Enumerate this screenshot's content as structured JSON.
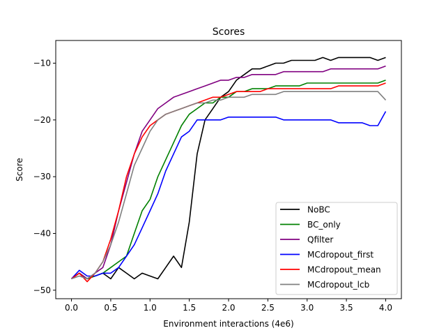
{
  "chart_data": {
    "type": "line",
    "title": "Scores",
    "xlabel": "Environment interactions (4e6)",
    "ylabel": "Score",
    "xlim": [
      -0.2,
      4.2
    ],
    "ylim": [
      -51.5,
      -6.0
    ],
    "x_ticks": [
      0.0,
      0.5,
      1.0,
      1.5,
      2.0,
      2.5,
      3.0,
      3.5,
      4.0
    ],
    "x_tick_labels": [
      "0.0",
      "0.5",
      "1.0",
      "1.5",
      "2.0",
      "2.5",
      "3.0",
      "3.5",
      "4.0"
    ],
    "y_ticks": [
      -50,
      -40,
      -30,
      -20,
      -10
    ],
    "y_tick_labels": [
      "−50",
      "−40",
      "−30",
      "−20",
      "−10"
    ],
    "grid": false,
    "legend_position": "lower right",
    "x": [
      0.0,
      0.1,
      0.2,
      0.3,
      0.4,
      0.5,
      0.6,
      0.7,
      0.8,
      0.9,
      1.0,
      1.1,
      1.2,
      1.3,
      1.4,
      1.5,
      1.6,
      1.7,
      1.8,
      1.9,
      2.0,
      2.1,
      2.2,
      2.3,
      2.4,
      2.5,
      2.6,
      2.7,
      2.8,
      2.9,
      3.0,
      3.1,
      3.2,
      3.3,
      3.4,
      3.5,
      3.6,
      3.7,
      3.8,
      3.9,
      4.0
    ],
    "series": [
      {
        "name": "NoBC",
        "color": "#000000",
        "values": [
          -48,
          -47,
          -48,
          -47.5,
          -47,
          -48,
          -46,
          -47,
          -48,
          -47,
          -47.5,
          -48,
          -46,
          -44,
          -46,
          -38,
          -26,
          -20,
          -18,
          -16,
          -15,
          -13,
          -12,
          -11,
          -11,
          -10.5,
          -10,
          -10,
          -9.5,
          -9.5,
          -9.5,
          -9.5,
          -9,
          -9.5,
          -9,
          -9,
          -9,
          -9,
          -9,
          -9.5,
          -9
        ]
      },
      {
        "name": "BC_only",
        "color": "#008000",
        "values": [
          -48,
          -47,
          -48,
          -47.5,
          -47,
          -46,
          -45,
          -44,
          -40,
          -36,
          -34,
          -30,
          -27,
          -24,
          -21,
          -19,
          -18,
          -17,
          -17,
          -16,
          -16,
          -15,
          -15,
          -14.5,
          -14.5,
          -14.5,
          -14,
          -14,
          -14,
          -14,
          -13.5,
          -13.5,
          -13.5,
          -13.5,
          -13.5,
          -13.5,
          -13.5,
          -13.5,
          -13.5,
          -13.5,
          -13
        ]
      },
      {
        "name": "Qfilter",
        "color": "#800080",
        "values": [
          -48,
          -47,
          -48,
          -47,
          -46,
          -42,
          -36,
          -31,
          -26,
          -22,
          -20,
          -18,
          -17,
          -16,
          -15.5,
          -15,
          -14.5,
          -14,
          -13.5,
          -13,
          -13,
          -12.5,
          -12.5,
          -12,
          -12,
          -12,
          -12,
          -11.5,
          -11.5,
          -11.5,
          -11.5,
          -11.5,
          -11.5,
          -11,
          -11,
          -11,
          -11,
          -11,
          -11,
          -11,
          -10.5
        ]
      },
      {
        "name": "MCdropout_first",
        "color": "#0000ff",
        "values": [
          -48,
          -46.5,
          -47.5,
          -47.5,
          -47,
          -47,
          -46,
          -44,
          -42,
          -39,
          -36,
          -33,
          -29,
          -26,
          -23,
          -22,
          -20,
          -20,
          -20,
          -20,
          -19.5,
          -19.5,
          -19.5,
          -19.5,
          -19.5,
          -19.5,
          -19.5,
          -20,
          -20,
          -20,
          -20,
          -20,
          -20,
          -20,
          -20.5,
          -20.5,
          -20.5,
          -20.5,
          -21,
          -21,
          -18.5
        ]
      },
      {
        "name": "MCdropout_mean",
        "color": "#ff0000",
        "values": [
          -48,
          -47,
          -48.5,
          -47,
          -45,
          -41,
          -36,
          -30,
          -26,
          -23,
          -21,
          -20,
          -19,
          -18.5,
          -18,
          -17.5,
          -17,
          -16.5,
          -16,
          -16,
          -15.5,
          -15,
          -15,
          -15,
          -15,
          -14.5,
          -14.5,
          -14.5,
          -14.5,
          -14.5,
          -14.5,
          -14.5,
          -14.5,
          -14.5,
          -14,
          -14,
          -14,
          -14,
          -14,
          -14,
          -13.5
        ]
      },
      {
        "name": "MCdropout_lcb",
        "color": "#808080",
        "values": [
          -48,
          -47.5,
          -48,
          -47,
          -45,
          -42,
          -38,
          -33,
          -28,
          -25,
          -22,
          -20,
          -19,
          -18.5,
          -18,
          -17.5,
          -17,
          -17,
          -16.5,
          -16.5,
          -16,
          -16,
          -16,
          -15.5,
          -15.5,
          -15.5,
          -15.5,
          -15,
          -15,
          -15,
          -15,
          -15,
          -15,
          -15,
          -15,
          -15,
          -15,
          -15,
          -15,
          -15,
          -16.5
        ]
      }
    ]
  }
}
